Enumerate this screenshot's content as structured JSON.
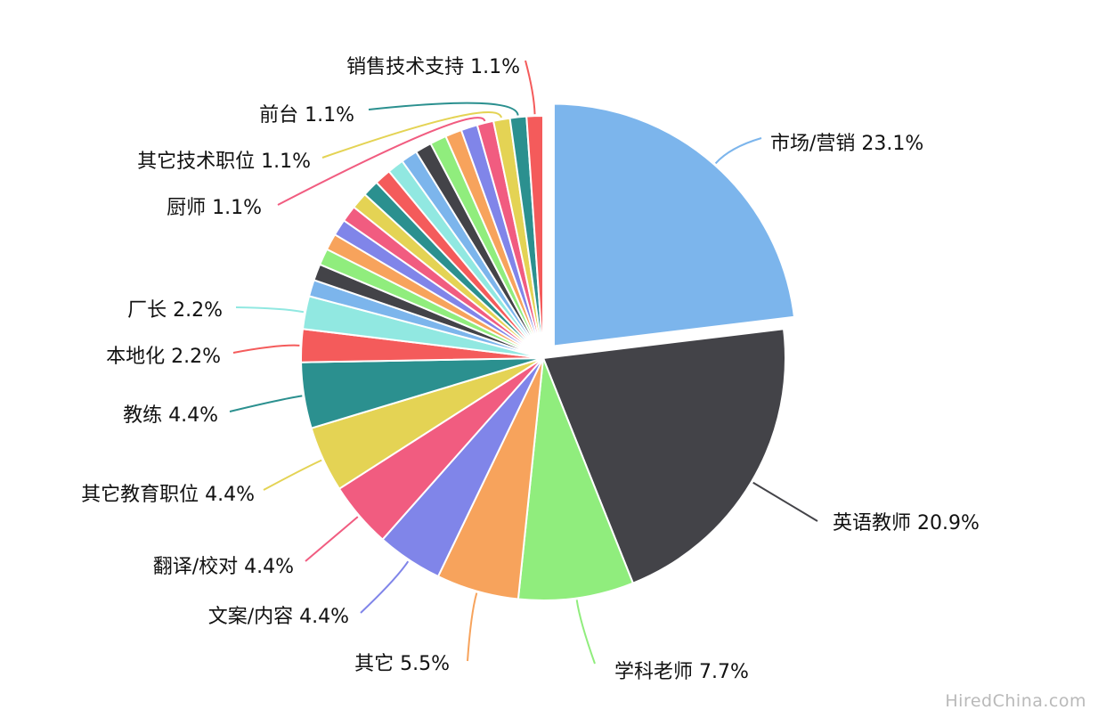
{
  "watermark": "HiredChina.com",
  "chart_data": {
    "type": "pie",
    "slices": [
      {
        "label": "市场/营销",
        "display": "市场/营销 23.1%",
        "value": 23.1,
        "color": "#7cb5ec",
        "exploded": true
      },
      {
        "label": "英语教师",
        "display": "英语教师 20.9%",
        "value": 20.9,
        "color": "#434348"
      },
      {
        "label": "学科老师",
        "display": "学科老师 7.7%",
        "value": 7.7,
        "color": "#90ed7d"
      },
      {
        "label": "其它",
        "display": "其它 5.5%",
        "value": 5.5,
        "color": "#f7a35c"
      },
      {
        "label": "文案/内容",
        "display": "文案/内容 4.4%",
        "value": 4.4,
        "color": "#8085e9"
      },
      {
        "label": "翻译/校对",
        "display": "翻译/校对  4.4%",
        "value": 4.4,
        "color": "#f15c80"
      },
      {
        "label": "其它教育职位",
        "display": "其它教育职位 4.4%",
        "value": 4.4,
        "color": "#e4d354"
      },
      {
        "label": "教练",
        "display": "教练 4.4%",
        "value": 4.4,
        "color": "#2b908f"
      },
      {
        "label": "本地化",
        "display": "本地化 2.2%",
        "value": 2.2,
        "color": "#f45b5b"
      },
      {
        "label": "厂长",
        "display": "厂长 2.2%",
        "value": 2.2,
        "color": "#91e8e1"
      },
      {
        "label": "",
        "display": "",
        "value": 1.1,
        "color": "#7cb5ec"
      },
      {
        "label": "",
        "display": "",
        "value": 1.1,
        "color": "#434348"
      },
      {
        "label": "",
        "display": "",
        "value": 1.1,
        "color": "#90ed7d"
      },
      {
        "label": "",
        "display": "",
        "value": 1.1,
        "color": "#f7a35c"
      },
      {
        "label": "",
        "display": "",
        "value": 1.1,
        "color": "#8085e9"
      },
      {
        "label": "",
        "display": "",
        "value": 1.1,
        "color": "#f15c80"
      },
      {
        "label": "",
        "display": "",
        "value": 1.1,
        "color": "#e4d354"
      },
      {
        "label": "",
        "display": "",
        "value": 1.1,
        "color": "#2b908f"
      },
      {
        "label": "",
        "display": "",
        "value": 1.1,
        "color": "#f45b5b"
      },
      {
        "label": "",
        "display": "",
        "value": 1.1,
        "color": "#91e8e1"
      },
      {
        "label": "",
        "display": "",
        "value": 1.1,
        "color": "#7cb5ec"
      },
      {
        "label": "",
        "display": "",
        "value": 1.1,
        "color": "#434348"
      },
      {
        "label": "",
        "display": "",
        "value": 1.1,
        "color": "#90ed7d"
      },
      {
        "label": "",
        "display": "",
        "value": 1.1,
        "color": "#f7a35c"
      },
      {
        "label": "",
        "display": "",
        "value": 1.1,
        "color": "#8085e9"
      },
      {
        "label": "厨师",
        "display": "厨师 1.1%",
        "value": 1.1,
        "color": "#f15c80"
      },
      {
        "label": "其它技术职位",
        "display": "其它技术职位 1.1%",
        "value": 1.1,
        "color": "#e4d354"
      },
      {
        "label": "前台",
        "display": "前台 1.1%",
        "value": 1.1,
        "color": "#2b908f"
      },
      {
        "label": "销售技术支持",
        "display": "销售技术支持 1.1%",
        "value": 1.1,
        "color": "#f45b5b"
      }
    ]
  }
}
